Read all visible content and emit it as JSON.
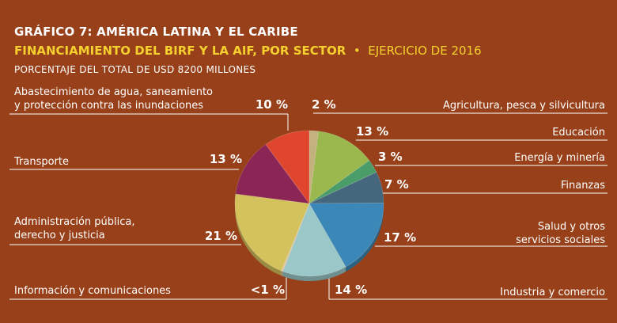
{
  "header": {
    "title": "GRÁFICO 7:  AMÉRICA LATINA Y EL CARIBE",
    "subtitle_bold": "FINANCIAMIENTO DEL BIRF Y LA AIF, POR SECTOR",
    "subtitle_sep": "•",
    "subtitle_rest": "EJERCICIO DE 2016",
    "note": "PORCENTAJE DEL TOTAL DE USD 8200 MILLONES"
  },
  "chart_data": {
    "type": "pie",
    "title": "FINANCIAMIENTO DEL BIRF Y LA AIF, POR SECTOR",
    "subtitle": "PORCENTAJE DEL TOTAL DE USD 8200 MILLONES",
    "slices": [
      {
        "label_lines": [
          "Agricultura, pesca y silvicultura"
        ],
        "value_label": "2 %",
        "value": 2,
        "color": "#c3b27e"
      },
      {
        "label_lines": [
          "Educación"
        ],
        "value_label": "13 %",
        "value": 13,
        "color": "#9ab84e"
      },
      {
        "label_lines": [
          "Energía y minería"
        ],
        "value_label": "3 %",
        "value": 3,
        "color": "#4a9d69"
      },
      {
        "label_lines": [
          "Finanzas"
        ],
        "value_label": "7 %",
        "value": 7,
        "color": "#44677e"
      },
      {
        "label_lines": [
          "Salud y otros",
          "servicios sociales"
        ],
        "value_label": "17 %",
        "value": 17,
        "color": "#3b88b8"
      },
      {
        "label_lines": [
          "Industria y comercio"
        ],
        "value_label": "14 %",
        "value": 14,
        "color": "#9ac8c8"
      },
      {
        "label_lines": [
          "Información y comunicaciones"
        ],
        "value_label": "<1 %",
        "value": 0.4,
        "color": "#d9c9a2"
      },
      {
        "label_lines": [
          "Administración pública,",
          "derecho y justicia"
        ],
        "value_label": "21 %",
        "value": 21,
        "color": "#d4c25c"
      },
      {
        "label_lines": [
          "Transporte"
        ],
        "value_label": "13 %",
        "value": 13,
        "color": "#8a2555"
      },
      {
        "label_lines": [
          "Abastecimiento de agua, saneamiento",
          "y protección contra las inundaciones"
        ],
        "value_label": "10 %",
        "value": 10,
        "color": "#e0452e"
      }
    ]
  }
}
